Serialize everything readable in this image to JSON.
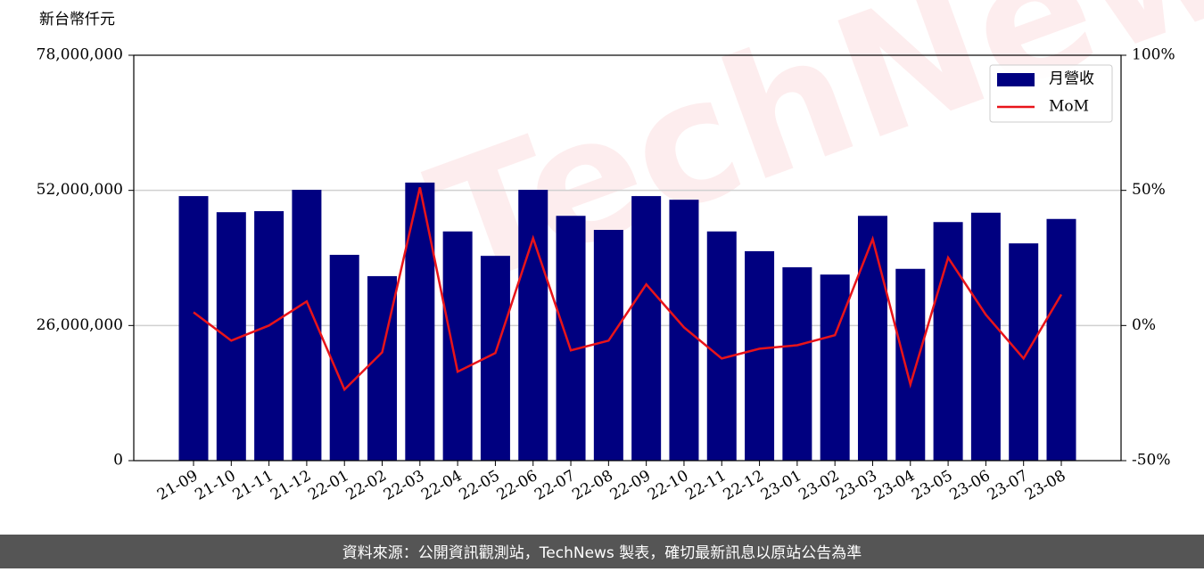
{
  "chart_data": {
    "type": "bar_line",
    "y_label": "新台幣仟元",
    "categories": [
      "21-09",
      "21-10",
      "21-11",
      "21-12",
      "22-01",
      "22-02",
      "22-03",
      "22-04",
      "22-05",
      "22-06",
      "22-07",
      "22-08",
      "22-09",
      "22-10",
      "22-11",
      "22-12",
      "23-01",
      "23-02",
      "23-03",
      "23-04",
      "23-05",
      "23-06",
      "23-07",
      "23-08"
    ],
    "series": [
      {
        "name": "月營收",
        "color": "#000080",
        "type": "bar",
        "values": [
          50900000,
          47800000,
          48000000,
          52100000,
          39600000,
          35500000,
          53500000,
          44100000,
          39400000,
          52100000,
          47100000,
          44400000,
          50900000,
          50200000,
          44100000,
          40300000,
          37200000,
          35800000,
          47100000,
          36900000,
          45900000,
          47700000,
          41800000,
          46500000
        ]
      },
      {
        "name": "MoM",
        "color": "#e8141a",
        "type": "line",
        "axis": "y2",
        "values": [
          4.9,
          -5.6,
          0,
          8.9,
          -23.7,
          -9.9,
          51.1,
          -17.1,
          -10.2,
          32.3,
          -9.2,
          -5.6,
          15.2,
          -0.7,
          -12.2,
          -8.6,
          -7.3,
          -3.6,
          32.0,
          -21.8,
          25.1,
          4.0,
          -12.2,
          11.5
        ]
      }
    ],
    "ylim": [
      0,
      78000000
    ],
    "yticks": [
      0,
      {
        "value": 26000000,
        "label": "26,000,000"
      },
      {
        "value": 52000000,
        "label": "52,000,000"
      },
      {
        "value": 78000000,
        "label": "78,000,000"
      }
    ],
    "y2lim": [
      -50,
      100
    ],
    "y2ticks": [
      {
        "value": -50,
        "label": "-50%"
      },
      {
        "value": 0,
        "label": "0%"
      },
      {
        "value": 50,
        "label": "50%"
      },
      {
        "value": 100,
        "label": "100%"
      }
    ],
    "grid": true,
    "legend": "upper right",
    "watermark": "TechNews",
    "footer": "資料來源：公開資訊觀測站，TechNews 製表，確切最新訊息以原站公告為準"
  }
}
